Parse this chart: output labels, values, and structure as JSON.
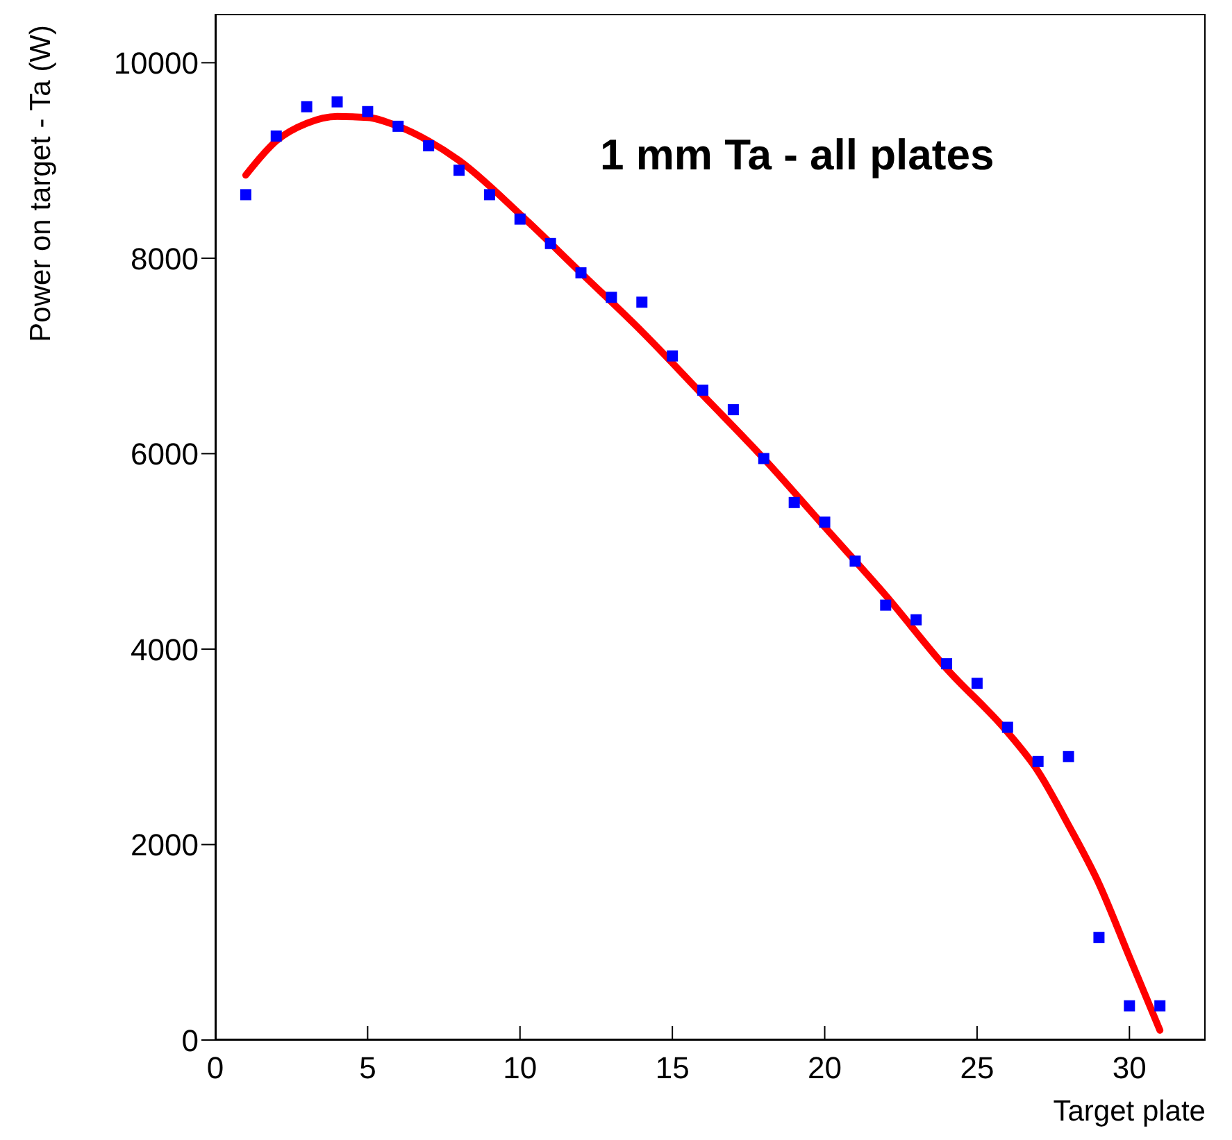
{
  "chart_data": {
    "type": "scatter",
    "title": "1 mm Ta - all plates",
    "xlabel": "Target plate",
    "ylabel": "Power on target - Ta (W)",
    "xlim": [
      0,
      32.5
    ],
    "xticks": [
      0,
      5,
      10,
      15,
      20,
      25,
      30
    ],
    "ylim": [
      0,
      10500
    ],
    "yticks": [
      0,
      2000,
      4000,
      6000,
      8000,
      10000
    ],
    "series": [
      {
        "color": "#0000ff",
        "marker": "square",
        "x": [
          1,
          2,
          3,
          4,
          5,
          6,
          7,
          8,
          9,
          10,
          11,
          12,
          13,
          14,
          15,
          16,
          17,
          18,
          19,
          20,
          21,
          22,
          23,
          24,
          25,
          26,
          27,
          28,
          29,
          30,
          31
        ],
        "values": [
          8650,
          9250,
          9550,
          9600,
          9500,
          9350,
          9150,
          8900,
          8650,
          8400,
          8150,
          7850,
          7600,
          7550,
          7000,
          6650,
          6450,
          5950,
          5500,
          5300,
          4900,
          4450,
          4300,
          3850,
          3650,
          3200,
          2850,
          2900,
          1050,
          350,
          350
        ]
      },
      {
        "type": "line",
        "color": "#ff0000",
        "marker": "none",
        "line_style": "solid",
        "x": [
          1,
          2,
          3,
          4,
          5,
          6,
          7,
          8,
          10,
          12,
          14,
          16,
          18,
          20,
          22,
          24,
          26,
          27,
          28,
          29,
          30,
          31
        ],
        "values": [
          8850,
          9200,
          9380,
          9450,
          9440,
          9350,
          9200,
          9000,
          8450,
          7850,
          7250,
          6600,
          5950,
          5250,
          4550,
          3800,
          3150,
          2750,
          2200,
          1600,
          850,
          100
        ]
      }
    ]
  }
}
